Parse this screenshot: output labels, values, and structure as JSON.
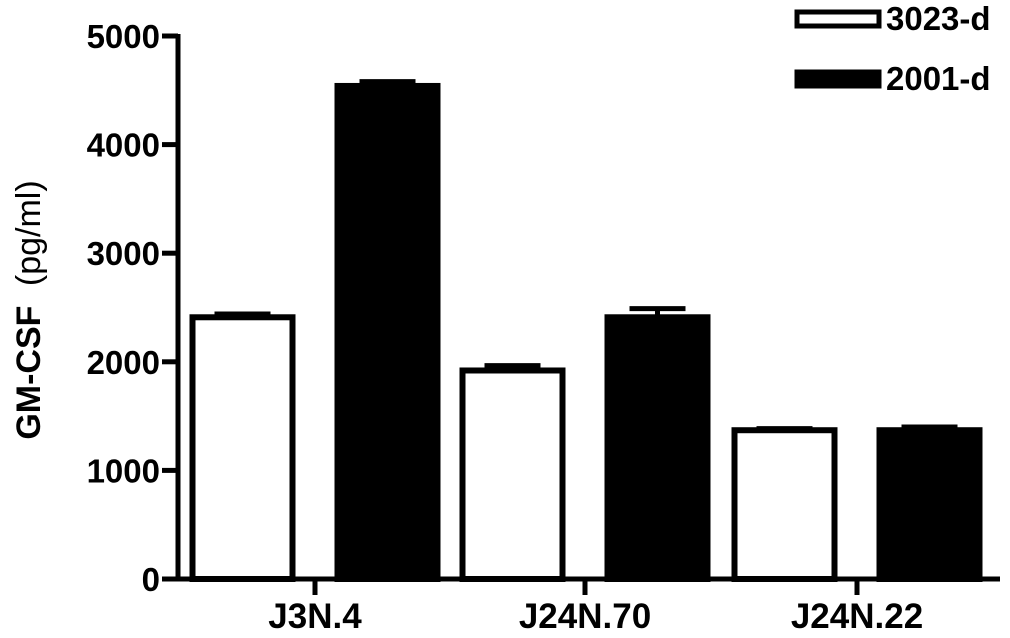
{
  "chart_data": {
    "type": "bar",
    "categories": [
      "J3N.4",
      "J24N.70",
      "J24N.22"
    ],
    "series": [
      {
        "name": "3023-d",
        "values": [
          2410,
          1920,
          1370
        ],
        "errors": [
          30,
          45,
          15
        ],
        "fill": "#ffffff"
      },
      {
        "name": "2001-d",
        "values": [
          4540,
          2410,
          1370
        ],
        "errors": [
          40,
          80,
          30
        ],
        "fill": "#000000"
      }
    ],
    "ylabel": {
      "bold": "GM-CSF",
      "unit": "(pg/ml)"
    },
    "ylim": [
      0,
      5000
    ],
    "yticks": [
      "0",
      "1000",
      "2000",
      "3000",
      "4000",
      "5000"
    ],
    "grid": false,
    "legend": "top-right",
    "colors": {
      "bar_stroke": "#000000",
      "axis": "#000000"
    }
  }
}
